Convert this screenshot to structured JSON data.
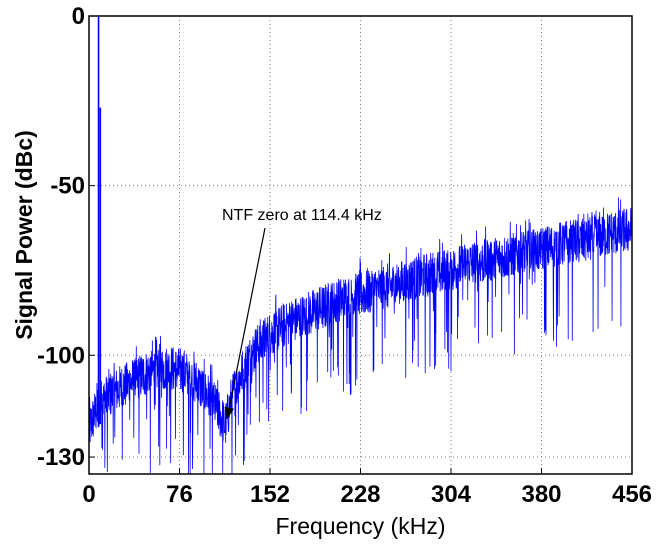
{
  "chart_data": {
    "type": "line",
    "title": "",
    "xlabel": "Frequency (kHz)",
    "ylabel": "Signal Power (dBc)",
    "xlim": [
      0,
      456
    ],
    "ylim": [
      -135,
      0
    ],
    "x_ticks": [
      0,
      76,
      152,
      228,
      304,
      380,
      456
    ],
    "y_ticks": [
      0,
      -50,
      -100,
      -130
    ],
    "grid": true,
    "colors": {
      "series": "#0000ff",
      "grid": "#808080",
      "axis": "#000000"
    },
    "series": [
      {
        "noise_envelope": {
          "x": [
            0,
            5,
            10,
            20,
            35,
            50,
            60,
            70,
            80,
            90,
            100,
            108,
            114.4,
            120,
            130,
            140,
            152,
            170,
            190,
            210,
            228,
            250,
            270,
            290,
            304,
            320,
            340,
            360,
            380,
            400,
            420,
            440,
            456
          ],
          "y": [
            -122,
            -117,
            -114,
            -111,
            -108,
            -105,
            -104,
            -104,
            -105,
            -108,
            -112,
            -116,
            -121,
            -112,
            -104,
            -98,
            -94,
            -90,
            -87,
            -84,
            -82,
            -80,
            -78,
            -76,
            -75,
            -73,
            -72,
            -70,
            -69,
            -67,
            -66,
            -64,
            -63
          ]
        },
        "spikes": [
          {
            "x": 8,
            "y": 0
          },
          {
            "x": 9.5,
            "y": -27
          }
        ]
      }
    ],
    "annotations": [
      {
        "text": "NTF zero at 114.4 kHz",
        "x": 114.4,
        "y": -118
      }
    ]
  }
}
